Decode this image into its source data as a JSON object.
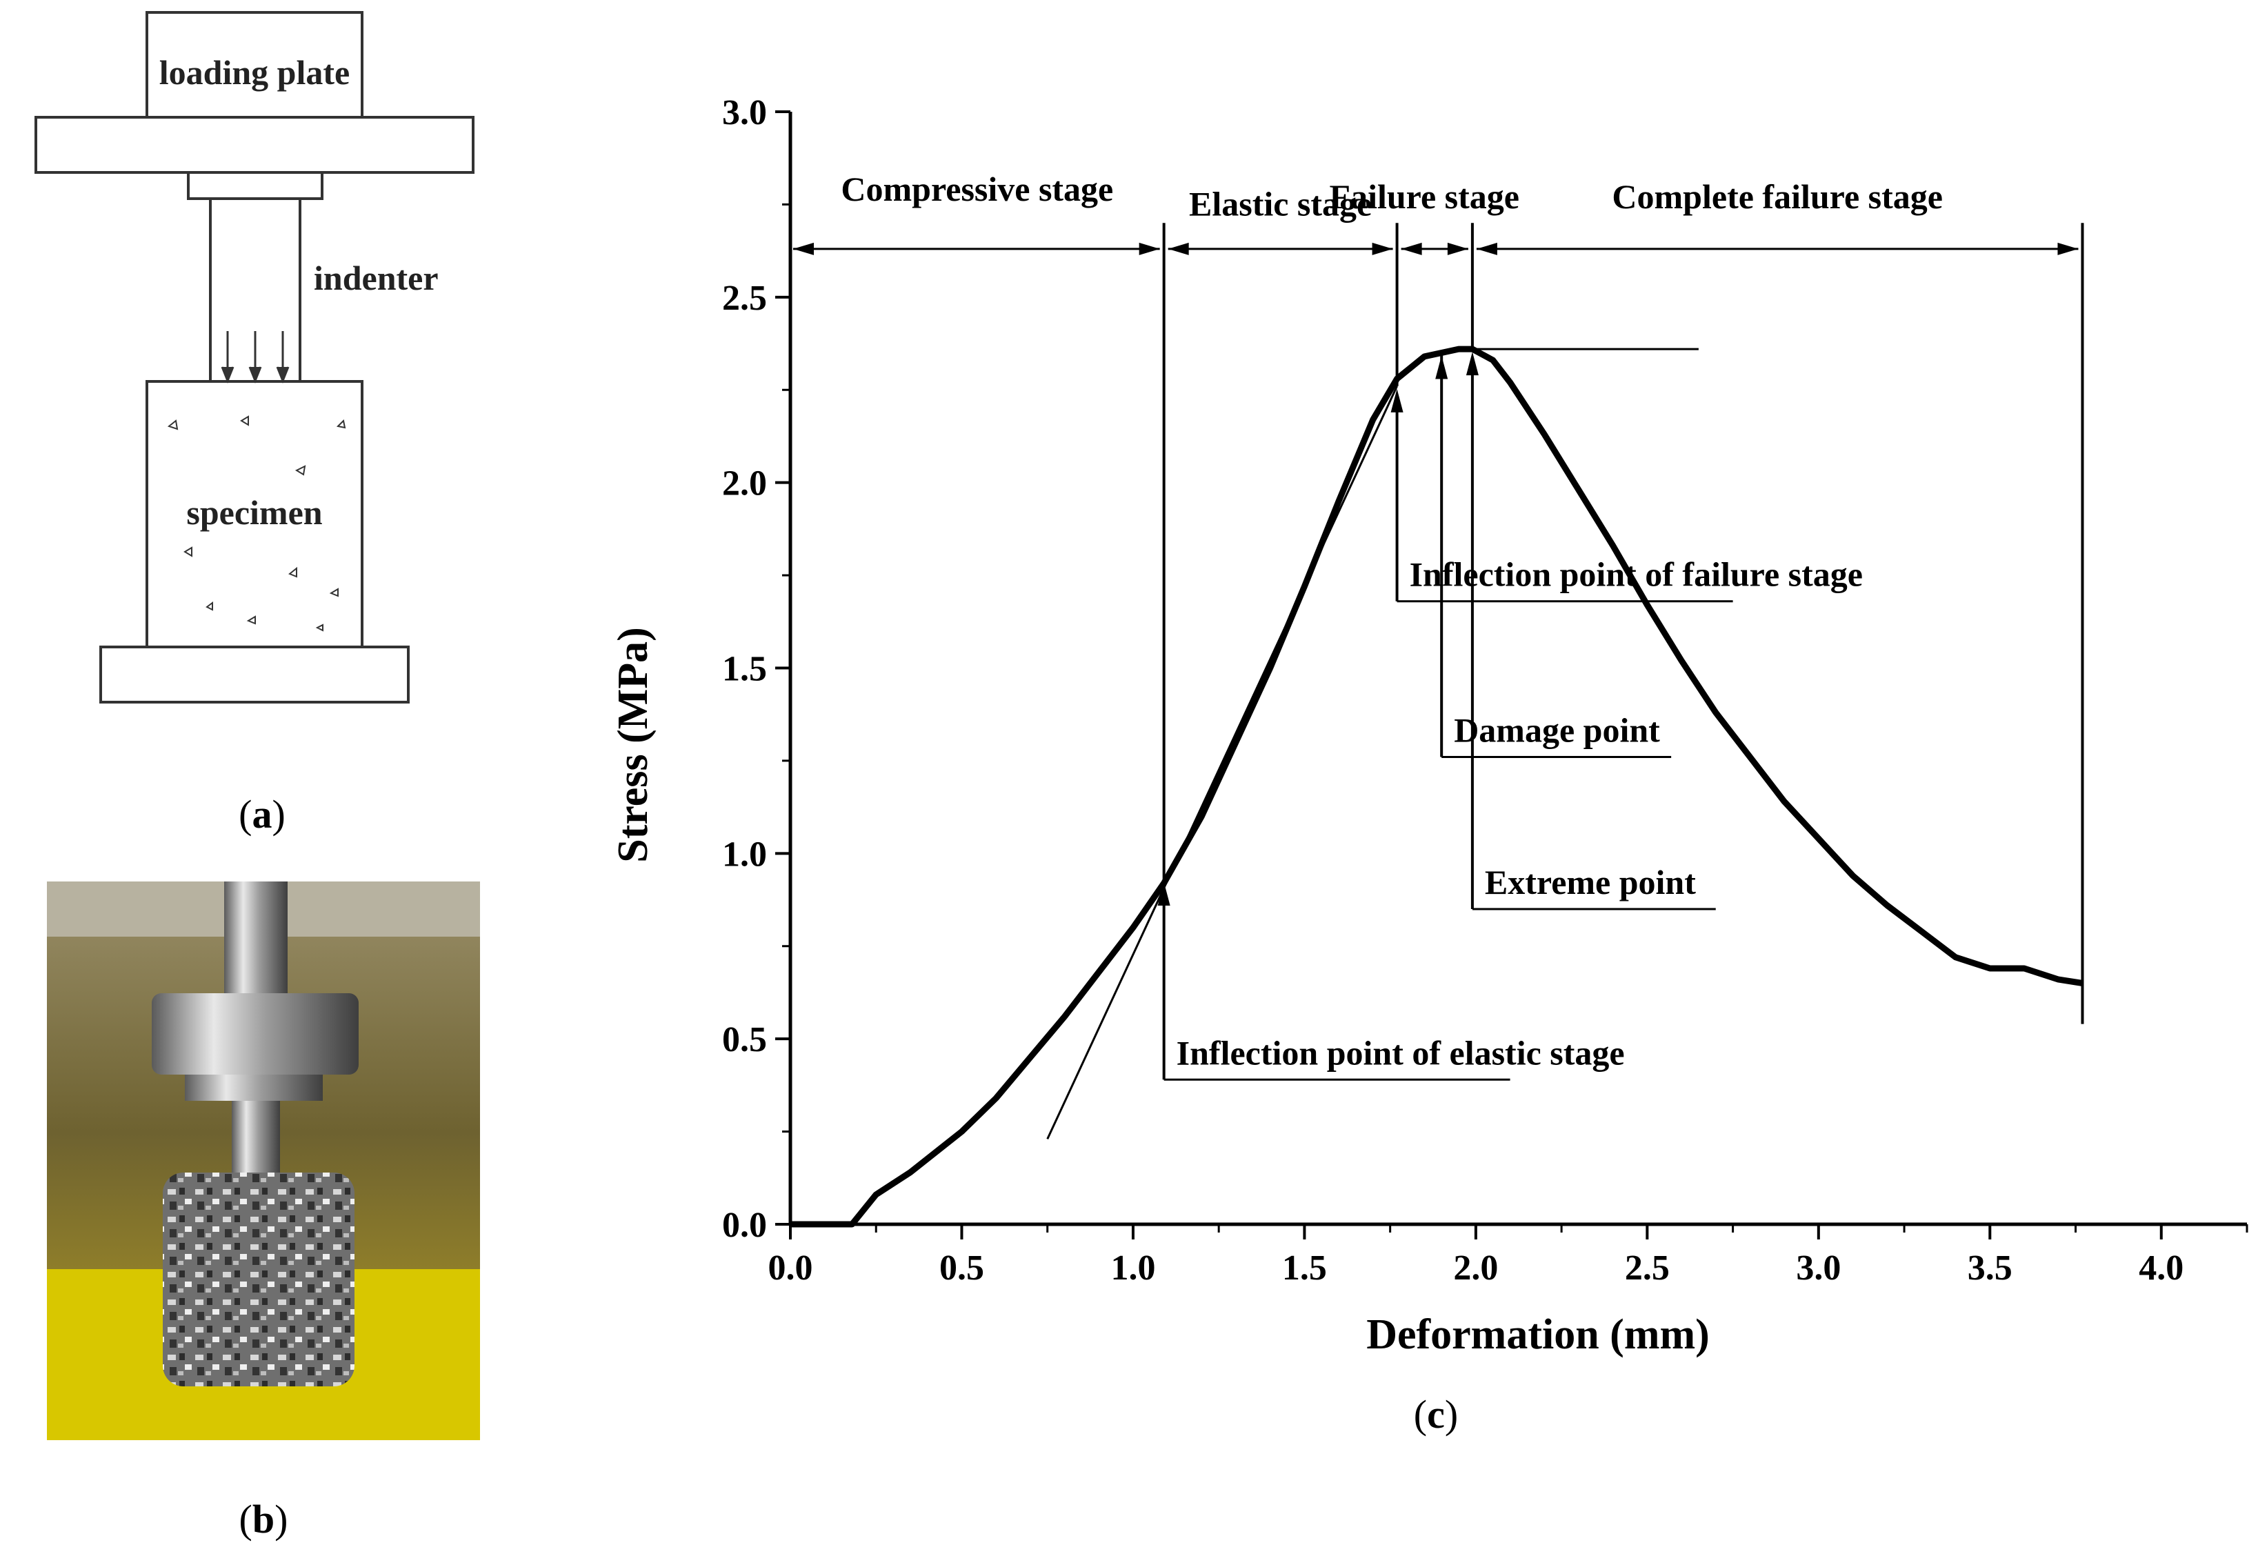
{
  "panels": {
    "a": {
      "caption_open": "(",
      "caption_letter": "a",
      "caption_close": ")",
      "labels": {
        "loading_plate": "loading plate",
        "indenter": "indenter",
        "specimen": "specimen"
      }
    },
    "b": {
      "caption_open": "(",
      "caption_letter": "b",
      "caption_close": ")"
    },
    "c": {
      "caption_open": "(",
      "caption_letter": "c",
      "caption_close": ")"
    }
  },
  "colors": {
    "curve": "#000000",
    "photo_background": "#8a7a3a",
    "yellow_base": "#e0c800",
    "specimen_gray": "#9a9a9a"
  },
  "chart_data": {
    "type": "line",
    "xlabel": "Deformation (mm)",
    "ylabel": "Stress (MPa)",
    "xlim": [
      0.0,
      4.25
    ],
    "ylim": [
      0.0,
      3.0
    ],
    "xticks": [
      "0.0",
      "0.5",
      "1.0",
      "1.5",
      "2.0",
      "2.5",
      "3.0",
      "3.5",
      "4.0"
    ],
    "yticks": [
      "0.0",
      "0.5",
      "1.0",
      "1.5",
      "2.0",
      "2.5",
      "3.0"
    ],
    "grid": false,
    "series": [
      {
        "x": [
          0.0,
          0.18,
          0.25,
          0.35,
          0.5,
          0.6,
          0.7,
          0.8,
          0.9,
          1.0,
          1.09,
          1.2,
          1.3,
          1.4,
          1.5,
          1.6,
          1.7,
          1.77,
          1.85,
          1.9,
          1.95,
          1.99,
          2.05,
          2.1,
          2.2,
          2.3,
          2.4,
          2.5,
          2.6,
          2.7,
          2.8,
          2.9,
          3.0,
          3.1,
          3.2,
          3.3,
          3.4,
          3.5,
          3.6,
          3.7,
          3.77
        ],
        "y": [
          0.0,
          0.0,
          0.08,
          0.14,
          0.25,
          0.34,
          0.45,
          0.56,
          0.68,
          0.8,
          0.92,
          1.1,
          1.3,
          1.5,
          1.72,
          1.95,
          2.17,
          2.28,
          2.34,
          2.35,
          2.36,
          2.36,
          2.33,
          2.27,
          2.13,
          1.98,
          1.83,
          1.67,
          1.52,
          1.38,
          1.26,
          1.14,
          1.04,
          0.94,
          0.86,
          0.79,
          0.72,
          0.69,
          0.69,
          0.66,
          0.65
        ]
      }
    ],
    "tangent_line": {
      "x": [
        0.75,
        1.77
      ],
      "y": [
        0.23,
        2.26
      ]
    },
    "stage_dividers_x": [
      1.09,
      1.77,
      1.99,
      3.77
    ],
    "stages": [
      {
        "label": "Compressive stage",
        "x_start": 0.0,
        "x_end": 1.09
      },
      {
        "label": "Elastic stage",
        "x_start": 1.09,
        "x_end": 1.77
      },
      {
        "label": "Failure stage",
        "x_start": 1.77,
        "x_end": 1.99
      },
      {
        "label": "Complete failure stage",
        "x_start": 1.99,
        "x_end": 3.77
      }
    ],
    "annotations": [
      {
        "label": "Inflection point of elastic stage",
        "x": 1.09,
        "y": 0.93,
        "line_y": 0.39
      },
      {
        "label": "Inflection point of failure stage",
        "x": 1.77,
        "y": 2.26,
        "line_y": 1.68
      },
      {
        "label": "Damage point",
        "x": 1.9,
        "y": 2.35,
        "line_y": 1.26
      },
      {
        "label": "Extreme point",
        "x": 1.99,
        "y": 2.36,
        "line_y": 0.85
      }
    ]
  }
}
